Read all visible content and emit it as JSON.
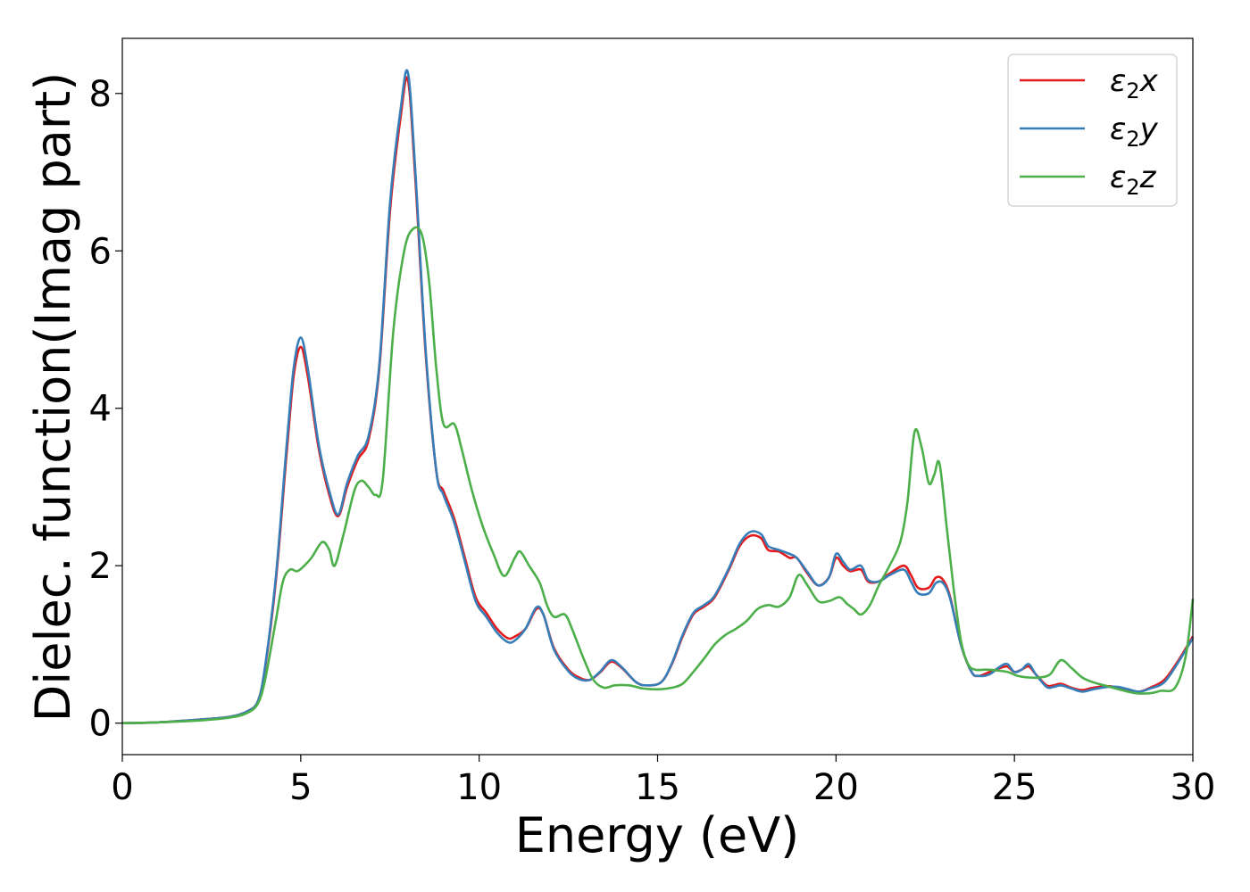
{
  "chart_data": {
    "type": "line",
    "title": "",
    "xlabel": "Energy (eV)",
    "ylabel": "Dielec. function(Imag part)",
    "xlim": [
      0,
      30
    ],
    "ylim": [
      -0.4,
      8.7
    ],
    "xticks": [
      0,
      5,
      10,
      15,
      20,
      25,
      30
    ],
    "yticks": [
      0,
      2,
      4,
      6,
      8
    ],
    "grid": false,
    "legend_position": "top-right",
    "series": [
      {
        "name": "ε2x",
        "legend_base": "ε",
        "legend_sub": "2",
        "legend_suffix": "x",
        "color": "#e41a1c",
        "x": [
          0,
          1,
          2,
          3,
          3.5,
          3.8,
          4.0,
          4.3,
          4.6,
          4.8,
          5.0,
          5.2,
          5.5,
          5.8,
          6.05,
          6.3,
          6.6,
          6.9,
          7.2,
          7.5,
          7.8,
          8.0,
          8.2,
          8.5,
          8.8,
          9.0,
          9.3,
          9.6,
          9.9,
          10.2,
          10.5,
          10.8,
          11.0,
          11.3,
          11.6,
          11.8,
          12.1,
          12.5,
          12.8,
          13.1,
          13.4,
          13.7,
          14.0,
          14.4,
          14.7,
          15.1,
          15.4,
          15.7,
          16.0,
          16.3,
          16.6,
          17.0,
          17.3,
          17.6,
          17.9,
          18.1,
          18.4,
          18.7,
          18.9,
          19.2,
          19.5,
          19.8,
          20.0,
          20.2,
          20.4,
          20.7,
          20.9,
          21.2,
          21.5,
          21.9,
          22.1,
          22.3,
          22.6,
          22.8,
          23.0,
          23.2,
          23.5,
          23.8,
          24.0,
          24.3,
          24.6,
          24.8,
          25.0,
          25.2,
          25.4,
          25.6,
          25.9,
          26.1,
          26.3,
          26.6,
          26.9,
          27.2,
          27.6,
          27.9,
          28.2,
          28.5,
          28.8,
          29.2,
          29.6,
          30.0
        ],
        "y": [
          0,
          0.01,
          0.04,
          0.08,
          0.15,
          0.28,
          0.7,
          1.8,
          3.4,
          4.4,
          4.78,
          4.4,
          3.5,
          2.9,
          2.63,
          3.0,
          3.35,
          3.6,
          4.5,
          6.5,
          7.7,
          8.18,
          7.0,
          4.7,
          3.2,
          2.95,
          2.6,
          2.1,
          1.6,
          1.4,
          1.2,
          1.08,
          1.1,
          1.2,
          1.45,
          1.38,
          0.95,
          0.68,
          0.58,
          0.55,
          0.65,
          0.78,
          0.7,
          0.52,
          0.48,
          0.52,
          0.75,
          1.1,
          1.38,
          1.48,
          1.6,
          1.95,
          2.25,
          2.38,
          2.35,
          2.2,
          2.18,
          2.1,
          2.1,
          1.9,
          1.75,
          1.85,
          2.1,
          2.0,
          1.93,
          1.95,
          1.8,
          1.8,
          1.9,
          2.0,
          1.88,
          1.72,
          1.72,
          1.85,
          1.82,
          1.6,
          1.0,
          0.65,
          0.6,
          0.65,
          0.7,
          0.72,
          0.65,
          0.68,
          0.72,
          0.62,
          0.48,
          0.48,
          0.5,
          0.45,
          0.42,
          0.45,
          0.47,
          0.45,
          0.42,
          0.4,
          0.45,
          0.55,
          0.8,
          1.1
        ]
      },
      {
        "name": "ε2y",
        "legend_base": "ε",
        "legend_sub": "2",
        "legend_suffix": "y",
        "color": "#377eb8",
        "x": [
          0,
          1,
          2,
          3,
          3.5,
          3.8,
          4.0,
          4.3,
          4.6,
          4.8,
          5.0,
          5.2,
          5.5,
          5.8,
          6.05,
          6.3,
          6.6,
          6.9,
          7.2,
          7.5,
          7.8,
          8.0,
          8.2,
          8.5,
          8.8,
          9.0,
          9.3,
          9.6,
          9.9,
          10.2,
          10.5,
          10.8,
          11.0,
          11.3,
          11.6,
          11.8,
          12.1,
          12.5,
          12.8,
          13.1,
          13.4,
          13.7,
          14.0,
          14.4,
          14.7,
          15.1,
          15.4,
          15.7,
          16.0,
          16.3,
          16.6,
          17.0,
          17.3,
          17.6,
          17.9,
          18.1,
          18.4,
          18.7,
          18.9,
          19.2,
          19.5,
          19.8,
          20.0,
          20.2,
          20.4,
          20.7,
          20.9,
          21.2,
          21.5,
          21.9,
          22.1,
          22.3,
          22.6,
          22.8,
          23.0,
          23.2,
          23.5,
          23.8,
          24.0,
          24.3,
          24.6,
          24.8,
          25.0,
          25.2,
          25.4,
          25.6,
          25.9,
          26.1,
          26.3,
          26.6,
          26.9,
          27.2,
          27.6,
          27.9,
          28.2,
          28.5,
          28.8,
          29.2,
          29.6,
          30.0
        ],
        "y": [
          0,
          0.01,
          0.04,
          0.08,
          0.15,
          0.28,
          0.72,
          1.85,
          3.5,
          4.5,
          4.9,
          4.5,
          3.55,
          2.95,
          2.65,
          3.05,
          3.4,
          3.65,
          4.55,
          6.6,
          7.8,
          8.27,
          7.1,
          4.75,
          3.2,
          2.9,
          2.55,
          2.05,
          1.55,
          1.35,
          1.15,
          1.03,
          1.05,
          1.2,
          1.47,
          1.38,
          0.93,
          0.66,
          0.56,
          0.55,
          0.66,
          0.8,
          0.71,
          0.52,
          0.48,
          0.52,
          0.76,
          1.12,
          1.4,
          1.5,
          1.62,
          1.97,
          2.28,
          2.43,
          2.4,
          2.25,
          2.2,
          2.15,
          2.1,
          1.92,
          1.75,
          1.85,
          2.15,
          2.05,
          1.95,
          2.0,
          1.82,
          1.8,
          1.88,
          1.95,
          1.8,
          1.65,
          1.65,
          1.78,
          1.78,
          1.58,
          1.0,
          0.65,
          0.6,
          0.62,
          0.72,
          0.75,
          0.65,
          0.68,
          0.75,
          0.62,
          0.46,
          0.46,
          0.48,
          0.44,
          0.4,
          0.43,
          0.46,
          0.46,
          0.43,
          0.4,
          0.44,
          0.52,
          0.78,
          1.08
        ]
      },
      {
        "name": "ε2z",
        "legend_base": "ε",
        "legend_sub": "2",
        "legend_suffix": "z",
        "color": "#4daf4a",
        "x": [
          0,
          1,
          2,
          3,
          3.5,
          3.8,
          4.0,
          4.3,
          4.5,
          4.7,
          4.9,
          5.1,
          5.3,
          5.6,
          5.8,
          5.95,
          6.2,
          6.5,
          6.7,
          6.9,
          7.1,
          7.3,
          7.6,
          7.9,
          8.15,
          8.4,
          8.6,
          8.8,
          9.0,
          9.3,
          9.5,
          9.8,
          10.1,
          10.4,
          10.7,
          11.0,
          11.15,
          11.4,
          11.7,
          11.9,
          12.1,
          12.4,
          12.6,
          12.9,
          13.2,
          13.5,
          13.8,
          14.2,
          14.6,
          15.0,
          15.4,
          15.7,
          16.0,
          16.3,
          16.6,
          16.9,
          17.2,
          17.5,
          17.8,
          18.1,
          18.4,
          18.7,
          18.95,
          19.2,
          19.5,
          19.8,
          20.1,
          20.3,
          20.5,
          20.7,
          20.95,
          21.2,
          21.5,
          21.8,
          22.0,
          22.2,
          22.4,
          22.6,
          22.75,
          22.9,
          23.1,
          23.3,
          23.5,
          23.7,
          23.9,
          24.2,
          24.5,
          24.8,
          25.1,
          25.4,
          25.7,
          26.0,
          26.3,
          26.6,
          26.9,
          27.2,
          27.6,
          28.0,
          28.4,
          28.8,
          29.1,
          29.5,
          29.8,
          30.0
        ],
        "y": [
          0,
          0.01,
          0.03,
          0.07,
          0.13,
          0.25,
          0.55,
          1.3,
          1.8,
          1.95,
          1.93,
          2.0,
          2.1,
          2.3,
          2.2,
          2.0,
          2.4,
          2.95,
          3.08,
          3.0,
          2.9,
          3.1,
          5.0,
          6.0,
          6.28,
          6.2,
          5.6,
          4.5,
          3.8,
          3.8,
          3.5,
          2.95,
          2.5,
          2.15,
          1.87,
          2.1,
          2.18,
          2.0,
          1.78,
          1.5,
          1.35,
          1.38,
          1.2,
          0.85,
          0.55,
          0.45,
          0.48,
          0.48,
          0.44,
          0.43,
          0.45,
          0.5,
          0.65,
          0.82,
          1.0,
          1.12,
          1.2,
          1.3,
          1.45,
          1.5,
          1.48,
          1.6,
          1.88,
          1.75,
          1.55,
          1.55,
          1.6,
          1.52,
          1.45,
          1.38,
          1.5,
          1.75,
          2.0,
          2.3,
          2.8,
          3.7,
          3.5,
          3.05,
          3.15,
          3.3,
          2.5,
          1.7,
          1.05,
          0.75,
          0.68,
          0.68,
          0.67,
          0.65,
          0.6,
          0.58,
          0.58,
          0.62,
          0.8,
          0.7,
          0.58,
          0.52,
          0.47,
          0.42,
          0.38,
          0.38,
          0.41,
          0.45,
          0.85,
          1.58
        ]
      }
    ]
  }
}
